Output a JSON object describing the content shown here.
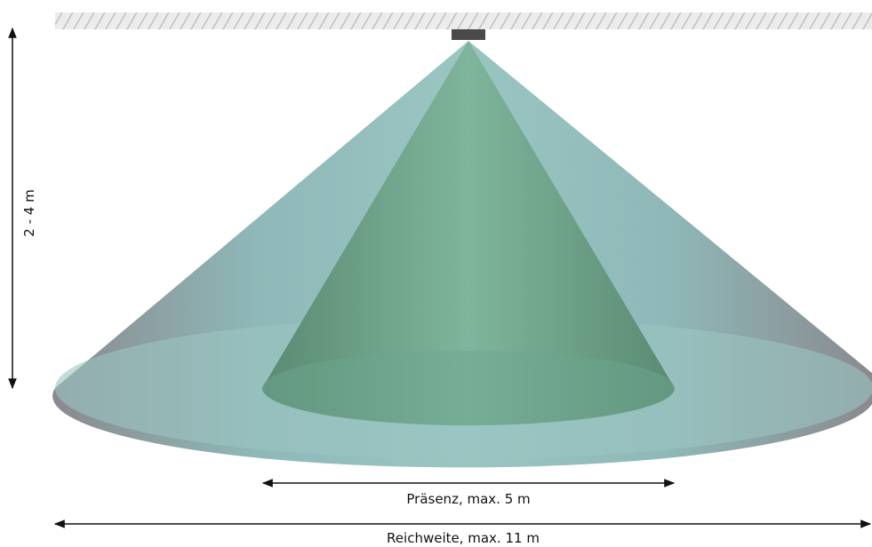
{
  "height_label": "2 - 4 m",
  "presence_label": "Präsenz, max. 5 m",
  "range_label": "Reichweite, max. 11 m"
}
